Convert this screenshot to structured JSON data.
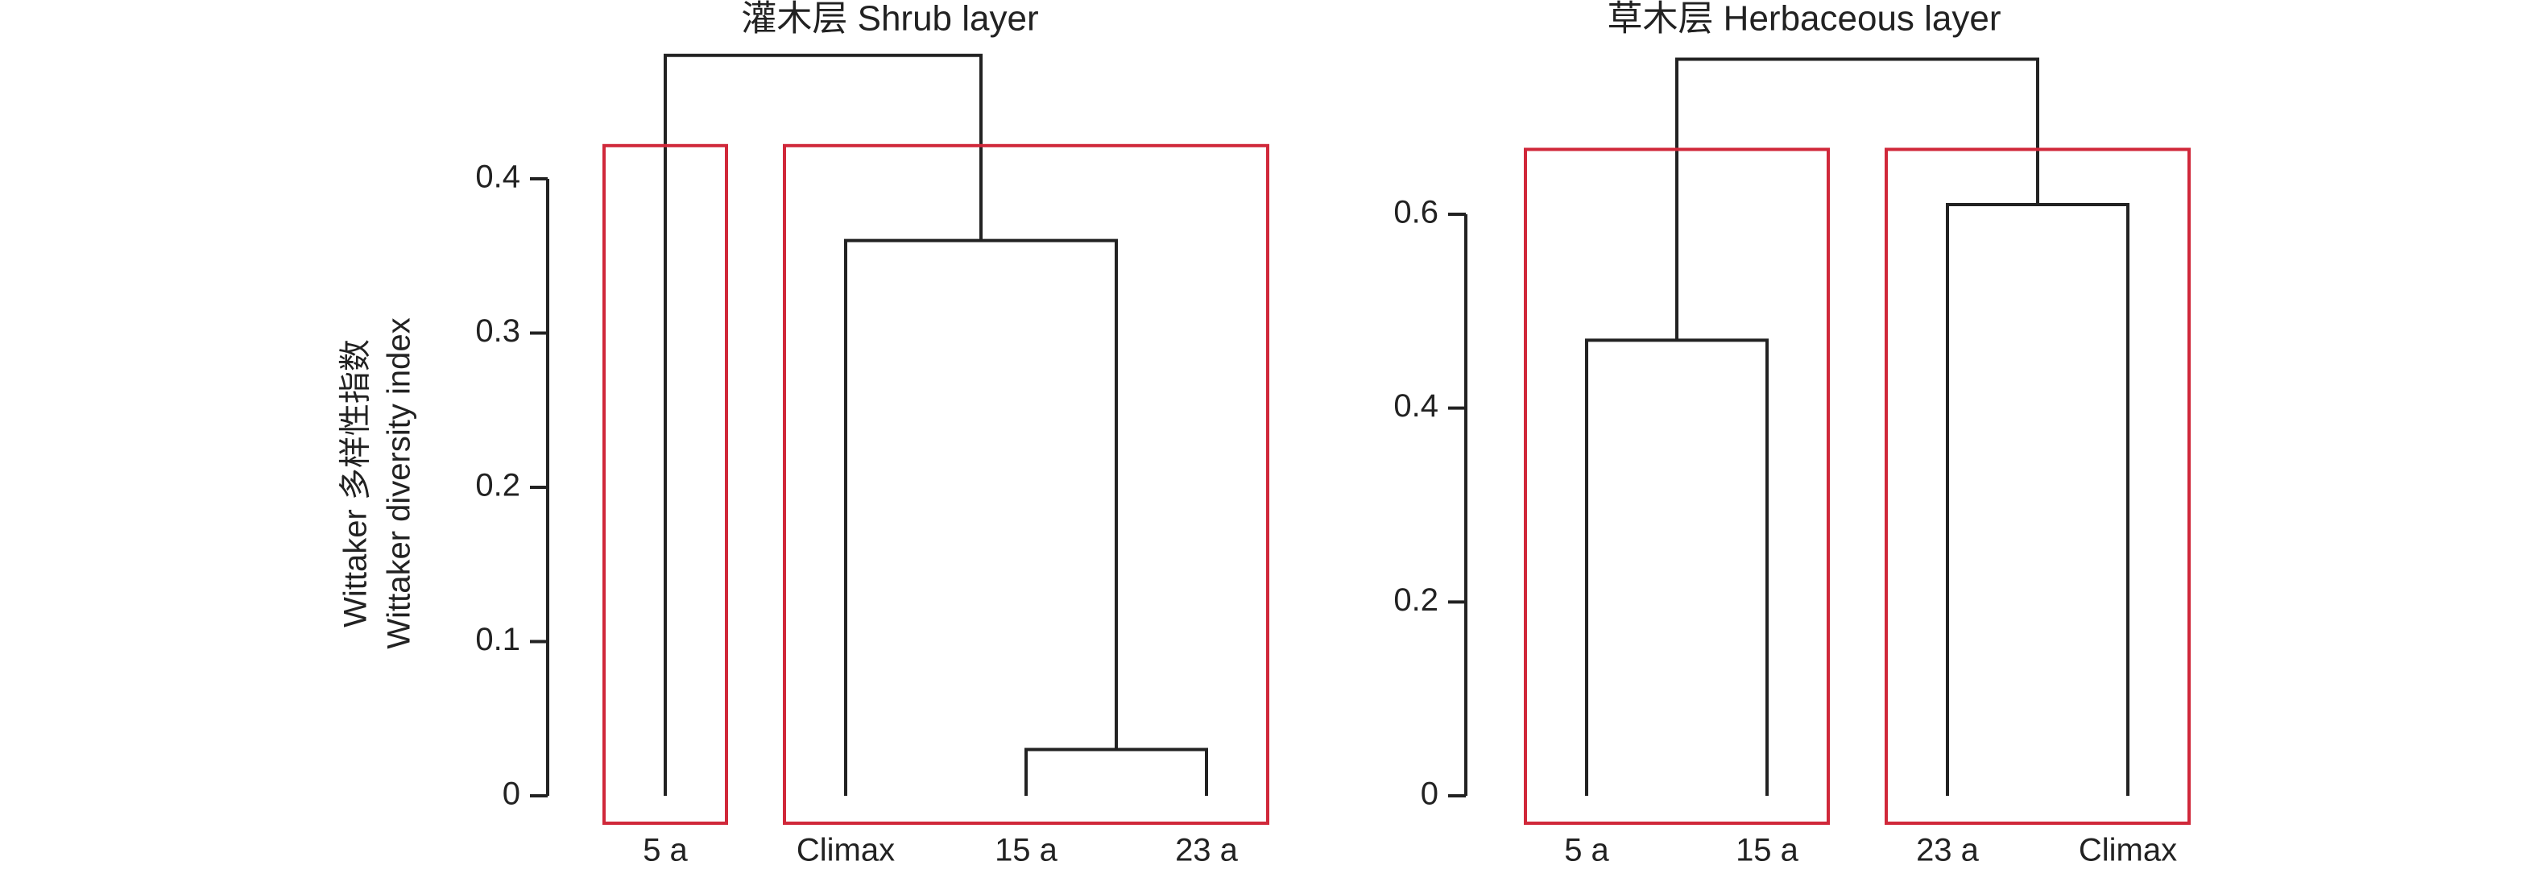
{
  "chart_data": [
    {
      "type": "dendrogram",
      "title": "灌木层 Shrub layer",
      "ylabel": [
        "Wittaker 多样性指数",
        "Wittaker diversity index"
      ],
      "leaves": [
        "5 a",
        "Climax",
        "15 a",
        "23 a"
      ],
      "merges": [
        {
          "children": [
            2,
            3
          ],
          "height": 0.03
        },
        {
          "children": [
            1,
            4
          ],
          "height": 0.36
        },
        {
          "children": [
            0,
            5
          ],
          "height": 0.48
        }
      ],
      "clusters": [
        [
          0
        ],
        [
          1,
          2,
          3
        ]
      ],
      "ylim": [
        0,
        0.4
      ],
      "yticks": [
        0,
        0.1,
        0.2,
        0.3,
        0.4
      ],
      "color": "#222222",
      "cluster_color": "#d0283a"
    },
    {
      "type": "dendrogram",
      "title": "草木层 Herbaceous layer",
      "leaves": [
        "5 a",
        "15 a",
        "23 a",
        "Climax"
      ],
      "merges": [
        {
          "children": [
            0,
            1
          ],
          "height": 0.47
        },
        {
          "children": [
            2,
            3
          ],
          "height": 0.61
        },
        {
          "children": [
            4,
            5
          ],
          "height": 0.76
        }
      ],
      "clusters": [
        [
          0,
          1
        ],
        [
          2,
          3
        ]
      ],
      "ylim": [
        0,
        0.6
      ],
      "yticks": [
        0,
        0.2,
        0.4,
        0.6
      ],
      "color": "#222222",
      "cluster_color": "#d0283a"
    }
  ]
}
